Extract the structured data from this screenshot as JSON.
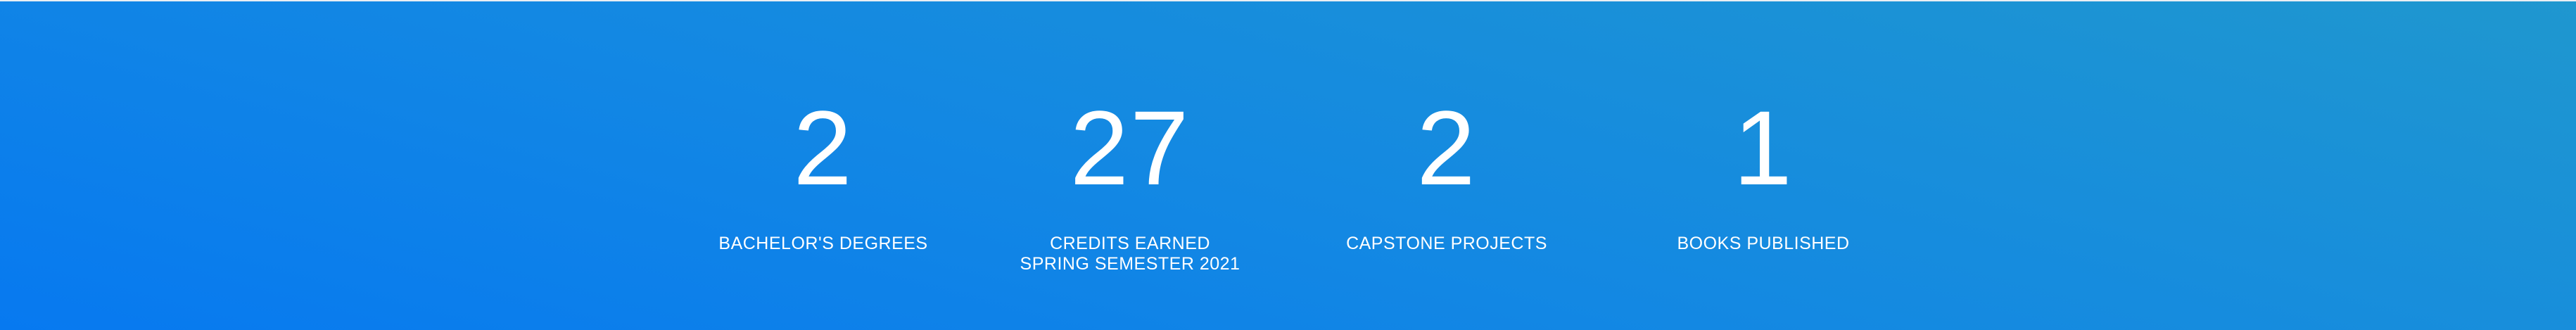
{
  "stats": [
    {
      "value": "2",
      "label": "BACHELOR'S DEGREES"
    },
    {
      "value": "27",
      "label": "CREDITS EARNED SPRING SEMESTER 2021"
    },
    {
      "value": "2",
      "label": "CAPSTONE PROJECTS"
    },
    {
      "value": "1",
      "label": "BOOKS PUBLISHED"
    }
  ],
  "colors": {
    "gradient_start": "#0779f0",
    "gradient_end": "#1f97cf",
    "text": "#ffffff"
  }
}
